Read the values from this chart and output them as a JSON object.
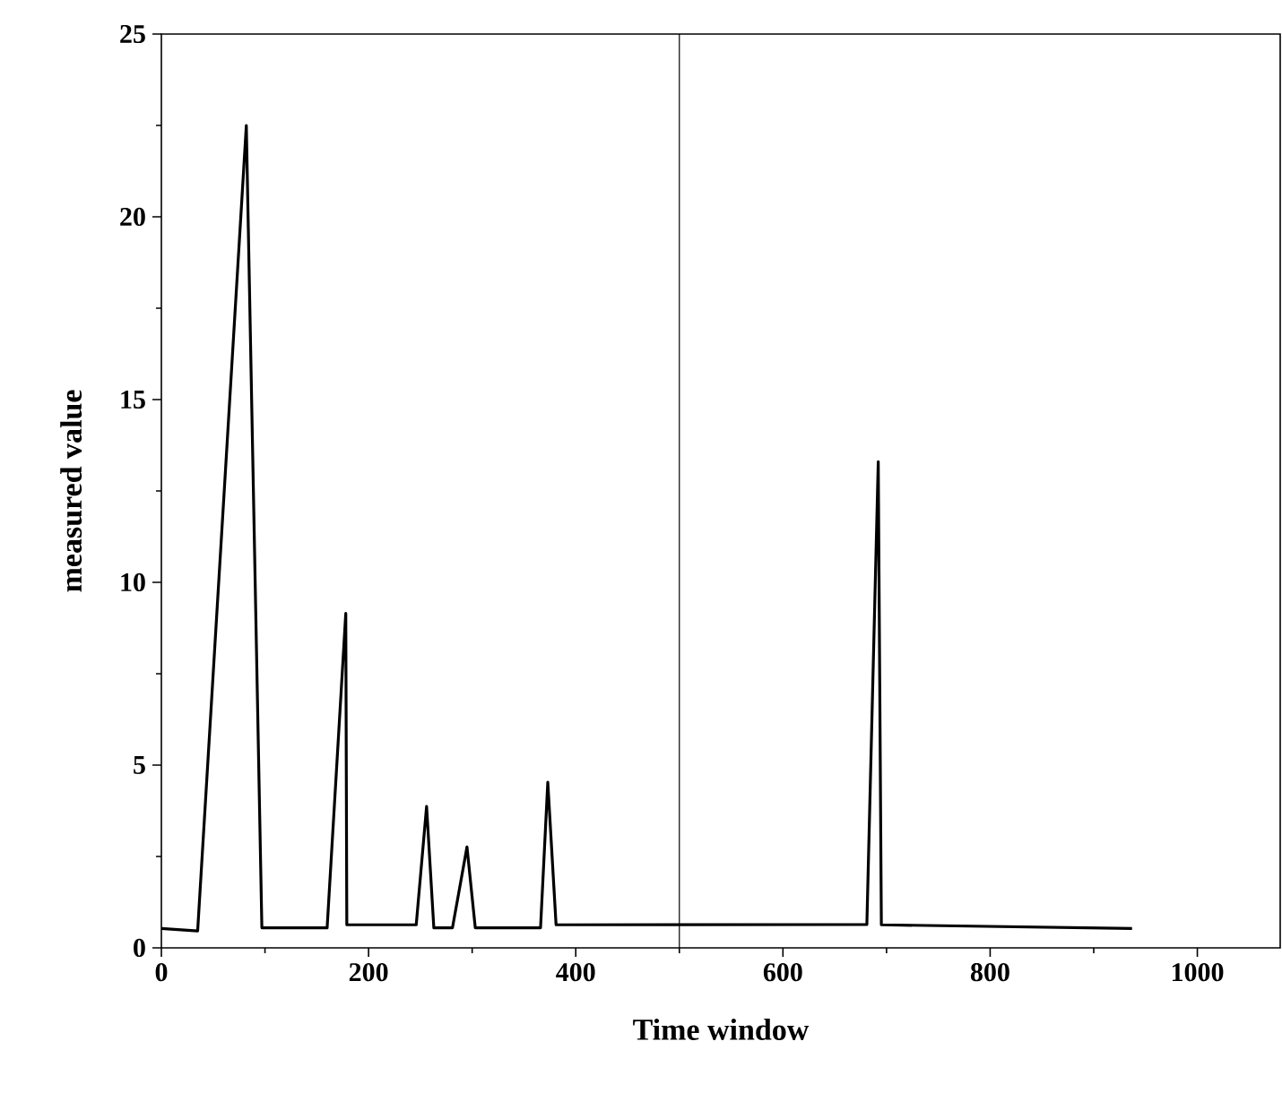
{
  "chart_data": {
    "type": "line",
    "xlabel": "Time window",
    "ylabel": "measured value",
    "series": [
      {
        "color": "#000000",
        "x": [
          0,
          35,
          82,
          97,
          160,
          178,
          179,
          246,
          256,
          263,
          281,
          295,
          303,
          366,
          373,
          381,
          681,
          692,
          695,
          937
        ],
        "values": [
          0.53,
          0.46,
          22.5,
          0.55,
          0.55,
          9.15,
          0.63,
          0.63,
          3.87,
          0.55,
          0.55,
          2.76,
          0.55,
          0.55,
          4.53,
          0.63,
          0.64,
          13.3,
          0.63,
          0.53
        ]
      }
    ],
    "xlim": [
      0,
      1080
    ],
    "ylim": [
      0,
      25
    ],
    "xticks": [
      0,
      200,
      400,
      600,
      800,
      1000
    ],
    "yticks": [
      0,
      5,
      10,
      15,
      20,
      25
    ],
    "ref_lines": [
      {
        "axis": "x",
        "value": 500,
        "color": "#000000"
      }
    ],
    "marker": "none",
    "line_style": "solid"
  }
}
